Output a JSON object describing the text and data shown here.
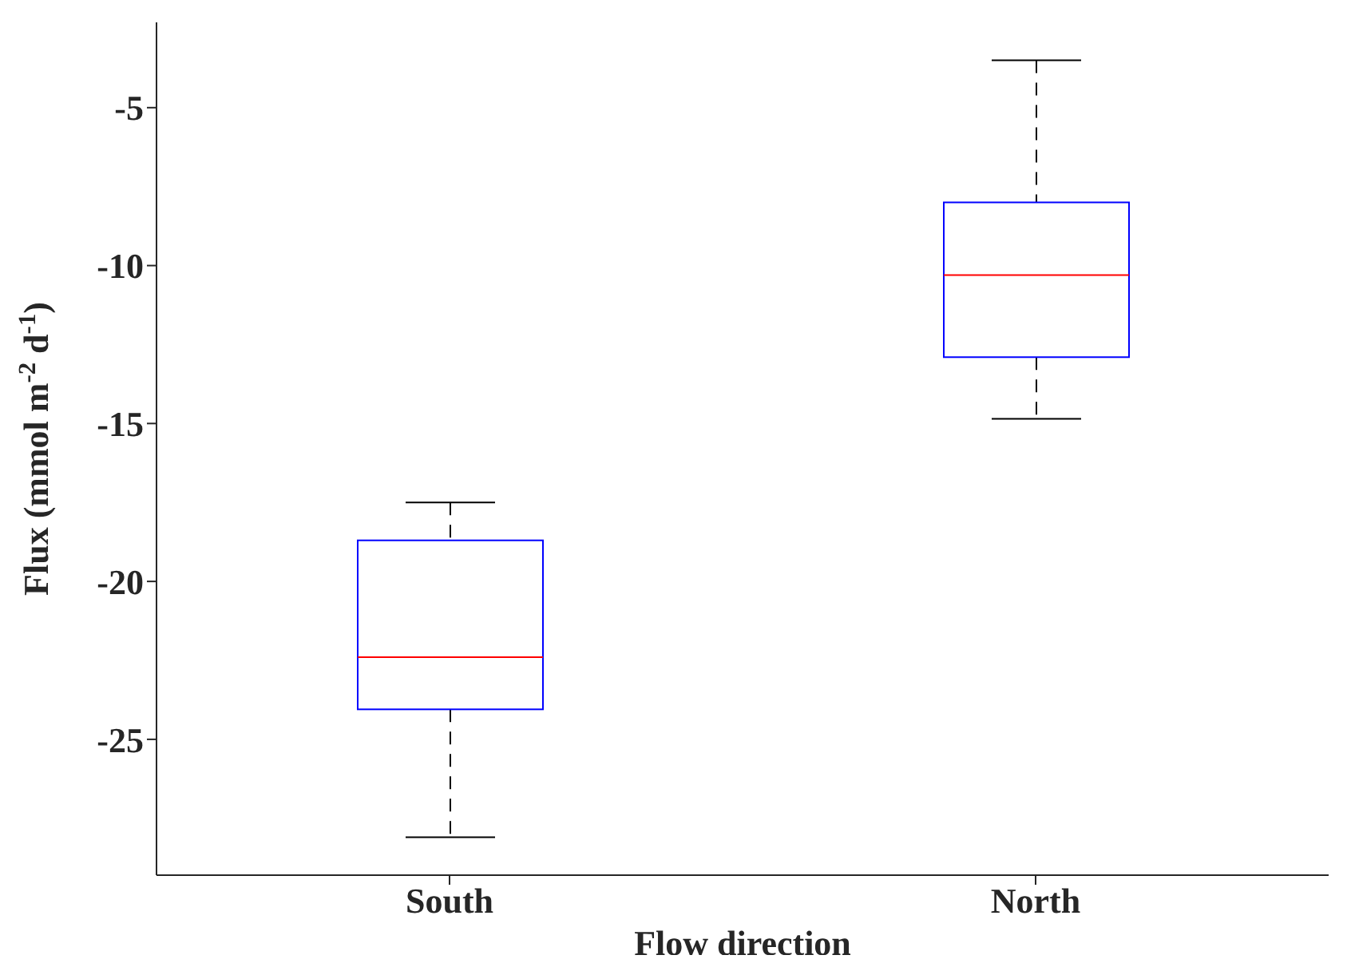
{
  "chart_data": {
    "type": "box",
    "categories": [
      "South",
      "North"
    ],
    "xlabel": "Flow direction",
    "ylabel": "Flux (mmol m$^{-2}$ d$^{-1}$)",
    "ylim": [
      -29.3,
      -2.3
    ],
    "yticks": [
      -25,
      -20,
      -15,
      -10,
      -5
    ],
    "grid": false,
    "series": [
      {
        "color": "#0000ff",
        "boxes": [
          {
            "low": -28.1,
            "q1": -24.05,
            "median": -22.4,
            "q3": -18.7,
            "high": -17.5
          },
          {
            "low": -14.85,
            "q1": -12.9,
            "median": -10.3,
            "q3": -8.0,
            "high": -3.5
          }
        ]
      }
    ]
  }
}
